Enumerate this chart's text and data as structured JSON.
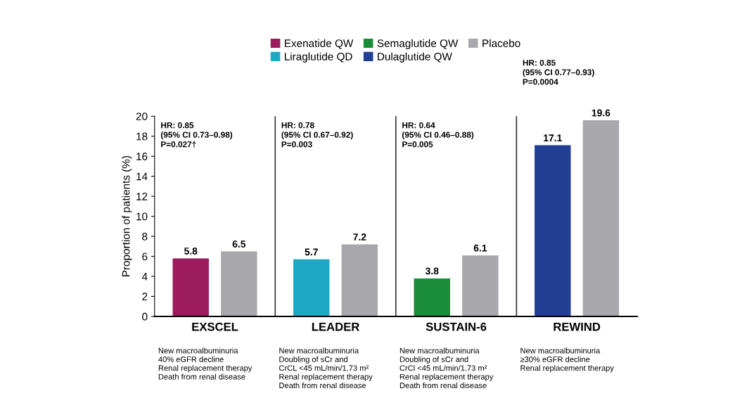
{
  "chart_data": {
    "type": "bar",
    "ylabel": "Proportion of patients (%)",
    "categories": [
      "EXSCEL",
      "LEADER",
      "SUSTAIN-6",
      "REWIND"
    ],
    "series": [
      {
        "name": "Exenatide QW",
        "color": "#9b1b5e",
        "values": [
          5.8,
          null,
          null,
          null
        ]
      },
      {
        "name": "Liraglutide QD",
        "color": "#1ea8c4",
        "values": [
          null,
          5.7,
          null,
          null
        ]
      },
      {
        "name": "Semaglutide QW",
        "color": "#1a8c3a",
        "values": [
          null,
          null,
          3.8,
          null
        ]
      },
      {
        "name": "Dulaglutide QW",
        "color": "#233f94",
        "values": [
          null,
          null,
          null,
          17.1
        ]
      },
      {
        "name": "Placebo",
        "color": "#a8a8ac",
        "values": [
          6.5,
          7.2,
          6.1,
          19.6
        ]
      }
    ],
    "ylim": [
      0,
      20
    ],
    "yticks": [
      0,
      2,
      4,
      6,
      8,
      10,
      12,
      14,
      16,
      18,
      20
    ],
    "data_labels": true,
    "legend": "top",
    "grid": false,
    "annotations": [
      "HR: 0.85\n(95% CI 0.73–0.98)\nP=0.027†",
      "HR: 0.78\n(95% CI 0.67–0.92)\nP=0.003",
      "HR: 0.64\n(95% CI 0.46–0.88)\nP=0.005",
      "HR: 0.85\n(95% CI 0.77–0.93)\nP=0.0004",
      "New macroalbuminuria\n40% eGFR decline\nRenal replacement therapy\nDeath from renal disease",
      "New macroalbuminuria\nDoubling of sCr and\nCrCL <45 mL/min/1.73 m²\nRenal replacement therapy\nDeath from renal disease",
      "New macroalbuminuria\nDoubling of sCr and\nCrCl <45 mL/min/1.73 m²\nRenal replacement therapy\nDeath from renal disease",
      "New macroalbuminuria\n≥30% eGFR decline\nRenal replacement therapy"
    ]
  }
}
